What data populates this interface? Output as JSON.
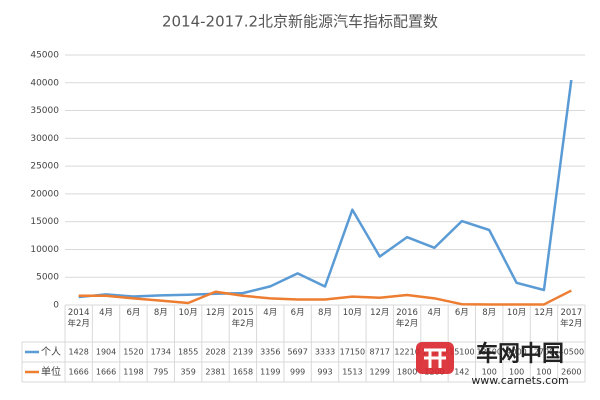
{
  "chart_data": {
    "type": "line",
    "title": "2014-2017.2北京新能源汽车指标配置数",
    "categories": [
      "2014年2月",
      "4月",
      "6月",
      "8月",
      "10月",
      "12月",
      "2015年2月",
      "4月",
      "6月",
      "8月",
      "10月",
      "12月",
      "2016年2月",
      "4月",
      "6月",
      "8月",
      "10月",
      "12月",
      "2017年2月"
    ],
    "series": [
      {
        "name": "个人",
        "color": "#5b9bd5",
        "values": [
          1428,
          1904,
          1520,
          1734,
          1855,
          2028,
          2139,
          3356,
          5697,
          3333,
          17150,
          8717,
          12210,
          10300,
          15100,
          13500,
          4000,
          2700,
          40500
        ]
      },
      {
        "name": "单位",
        "color": "#ed7d31",
        "values": [
          1666,
          1666,
          1198,
          795,
          359,
          2381,
          1658,
          1199,
          999,
          993,
          1513,
          1299,
          1800,
          1200,
          142,
          100,
          100,
          100,
          2600
        ]
      }
    ],
    "ylim": [
      0,
      45000
    ],
    "yticks": [
      0,
      5000,
      10000,
      15000,
      20000,
      25000,
      30000,
      35000,
      40000,
      45000
    ],
    "grid": true
  },
  "watermark": {
    "brand": "车网中国",
    "url": "www.carnets.com"
  }
}
